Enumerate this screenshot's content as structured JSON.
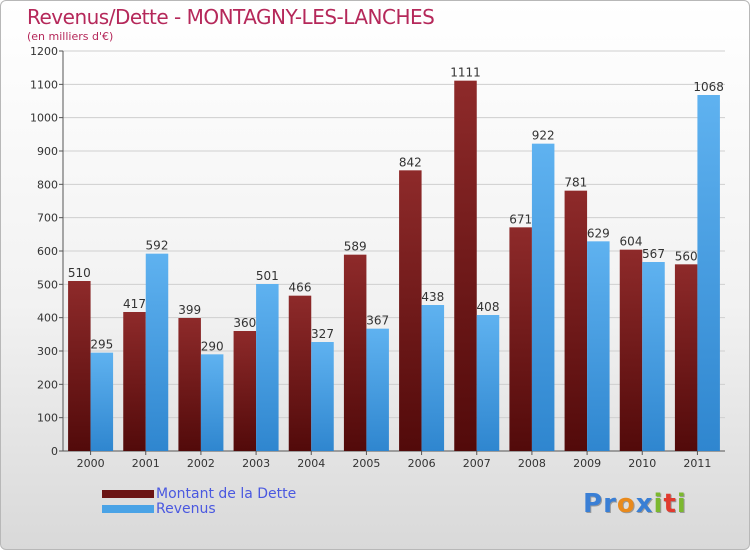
{
  "title": "Revenus/Dette - MONTAGNY-LES-LANCHES",
  "subtitle": "(en milliers d'€)",
  "logo": {
    "letters": [
      {
        "ch": "P",
        "color": "#3a7fd5"
      },
      {
        "ch": "r",
        "color": "#3a7fd5"
      },
      {
        "ch": "o",
        "color": "#e98a1c"
      },
      {
        "ch": "x",
        "color": "#3a7fd5"
      },
      {
        "ch": "i",
        "color": "#7cb82f"
      },
      {
        "ch": "t",
        "color": "#e03a2f"
      },
      {
        "ch": "i",
        "color": "#7cb82f"
      }
    ]
  },
  "chart_data": {
    "type": "bar",
    "categories": [
      "2000",
      "2001",
      "2002",
      "2003",
      "2004",
      "2005",
      "2006",
      "2007",
      "2008",
      "2009",
      "2010",
      "2011"
    ],
    "series": [
      {
        "name": "Montant de la Dette",
        "color": "#7a1f1f",
        "values": [
          510,
          417,
          399,
          360,
          466,
          589,
          842,
          1111,
          671,
          781,
          604,
          560
        ]
      },
      {
        "name": "Revenus",
        "color": "#4aa3e6",
        "values": [
          295,
          592,
          290,
          501,
          327,
          367,
          438,
          408,
          922,
          629,
          567,
          1068
        ]
      }
    ],
    "yticks": [
      0,
      100,
      200,
      300,
      400,
      500,
      600,
      700,
      800,
      900,
      1000,
      1100,
      1200
    ],
    "ylim": [
      0,
      1200
    ],
    "grid": true,
    "legend_position": "bottom-left"
  }
}
